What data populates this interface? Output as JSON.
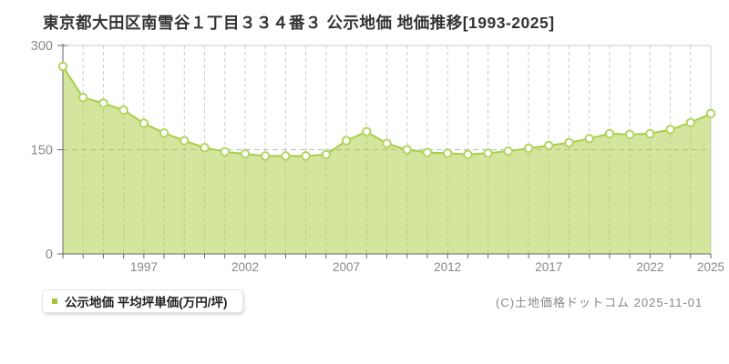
{
  "chart_data": {
    "type": "area",
    "title": "東京都大田区南雪谷１丁目３３４番３ 公示地価 地価推移[1993-2025]",
    "series_name": "公示地価 平均坪単価(万円/坪)",
    "unit": "万円/坪",
    "x": [
      1993,
      1994,
      1995,
      1996,
      1997,
      1998,
      1999,
      2000,
      2001,
      2002,
      2003,
      2004,
      2005,
      2006,
      2007,
      2008,
      2009,
      2010,
      2011,
      2012,
      2013,
      2014,
      2015,
      2016,
      2017,
      2018,
      2019,
      2020,
      2021,
      2022,
      2023,
      2024,
      2025
    ],
    "values": [
      270,
      225,
      217,
      207,
      188,
      174,
      163,
      153,
      147,
      144,
      141,
      141,
      141,
      143,
      163,
      176,
      159,
      150,
      146,
      145,
      143,
      145,
      148,
      152,
      156,
      160,
      166,
      173,
      172,
      173,
      179,
      189,
      202
    ],
    "ylim": [
      0,
      300
    ],
    "yticks": [
      0,
      150,
      300
    ],
    "xticks": [
      1997,
      2002,
      2007,
      2012,
      2017,
      2022,
      2025
    ],
    "grid": {
      "vertical": "dashed-every-year",
      "horizontal": "dashed-at-150"
    },
    "legend_position": "bottom-left",
    "colors": {
      "area_fill": "#aacc3c",
      "line": "#a8ce48",
      "point_fill": "#ffffff",
      "point_stroke": "#b2d55e",
      "legend_marker": "#a6c832",
      "axis": "#666666",
      "grid_line": "#cccccc",
      "grid_line_h": "#bbbbbb",
      "tick_label": "#888888",
      "title": "#333333"
    }
  },
  "footer": {
    "copyright": "(C)土地価格ドットコム 2025-11-01"
  }
}
